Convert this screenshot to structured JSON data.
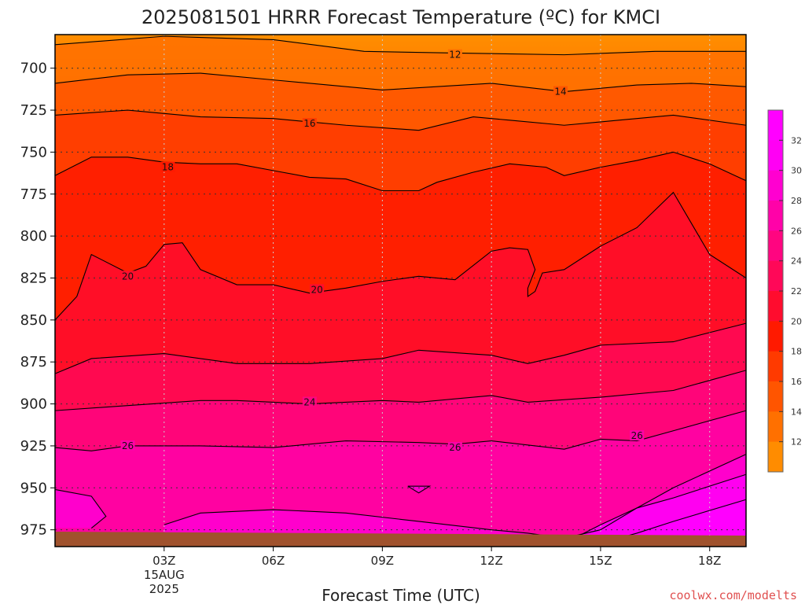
{
  "chart_data": {
    "type": "heatmap",
    "title": "2025081501 HRRR Forecast Temperature (ºC) for KMCI",
    "xlabel": "Forecast Time (UTC)",
    "ylabel": "",
    "x_ticks": [
      {
        "hour": 3,
        "label": "03Z",
        "extra": [
          "15AUG",
          "2025"
        ]
      },
      {
        "hour": 6,
        "label": "06Z"
      },
      {
        "hour": 9,
        "label": "09Z"
      },
      {
        "hour": 12,
        "label": "12Z"
      },
      {
        "hour": 15,
        "label": "15Z"
      },
      {
        "hour": 18,
        "label": "18Z"
      }
    ],
    "xlim": [
      0,
      19
    ],
    "ylim_hPa": [
      680,
      985
    ],
    "y_ticks": [
      700,
      725,
      750,
      775,
      800,
      825,
      850,
      875,
      900,
      925,
      950,
      975
    ],
    "colorbar": {
      "ticks": [
        12,
        14,
        16,
        18,
        20,
        22,
        24,
        26,
        28,
        30,
        32
      ],
      "colors": [
        "#ff8c00",
        "#ff7000",
        "#ff5500",
        "#ff3a00",
        "#ff1a00",
        "#ff0c2e",
        "#ff0858",
        "#ff0580",
        "#ff02a8",
        "#ff00d0",
        "#ff00f4",
        "#ff00ff"
      ]
    },
    "contours": [
      {
        "level": 12,
        "label_at": [
          11,
          692
        ],
        "points": [
          [
            0,
            686
          ],
          [
            3,
            681
          ],
          [
            6,
            683
          ],
          [
            8.5,
            690
          ],
          [
            11,
            691
          ],
          [
            14,
            692
          ],
          [
            16.5,
            690
          ],
          [
            19,
            690
          ]
        ]
      },
      {
        "level": 14,
        "label_at": [
          13.9,
          714
        ],
        "points": [
          [
            0,
            709
          ],
          [
            2,
            704
          ],
          [
            4,
            703
          ],
          [
            6,
            707
          ],
          [
            9,
            713
          ],
          [
            12,
            709
          ],
          [
            14,
            714
          ],
          [
            16,
            710
          ],
          [
            17.5,
            709
          ],
          [
            19,
            711
          ]
        ]
      },
      {
        "level": 16,
        "label_at": [
          7,
          733
        ],
        "points": [
          [
            0,
            728
          ],
          [
            2,
            725
          ],
          [
            4,
            729
          ],
          [
            6,
            730
          ],
          [
            8,
            734
          ],
          [
            10,
            737
          ],
          [
            11.5,
            729
          ],
          [
            12.5,
            731
          ],
          [
            14,
            734
          ],
          [
            15.5,
            731
          ],
          [
            17,
            728
          ],
          [
            19,
            734
          ]
        ]
      },
      {
        "level": 18,
        "label_at": [
          3.1,
          759
        ],
        "points": [
          [
            0,
            764
          ],
          [
            1,
            753
          ],
          [
            2,
            753
          ],
          [
            3,
            756
          ],
          [
            4,
            757
          ],
          [
            5,
            757
          ],
          [
            6,
            761
          ],
          [
            7,
            765
          ],
          [
            8,
            766
          ],
          [
            9,
            773
          ],
          [
            10,
            773
          ],
          [
            10.5,
            768
          ],
          [
            11.5,
            762
          ],
          [
            12.5,
            757
          ],
          [
            13.5,
            759
          ],
          [
            14,
            764
          ],
          [
            15,
            759
          ],
          [
            16,
            755
          ],
          [
            17,
            750
          ],
          [
            18,
            757
          ],
          [
            19,
            767
          ]
        ]
      },
      {
        "level": 20,
        "label_at": [
          2,
          824
        ],
        "points": [
          [
            0,
            850
          ],
          [
            0.6,
            836
          ],
          [
            1,
            811
          ],
          [
            2,
            822
          ],
          [
            2.5,
            818
          ],
          [
            3,
            805
          ],
          [
            3.5,
            804
          ],
          [
            4,
            820
          ],
          [
            5,
            829
          ],
          [
            6,
            829
          ],
          [
            7,
            834
          ],
          [
            8,
            831
          ],
          [
            9,
            827
          ],
          [
            10,
            824
          ],
          [
            11,
            826
          ],
          [
            12,
            809
          ],
          [
            12.5,
            807
          ],
          [
            13,
            808
          ],
          [
            13.2,
            820
          ],
          [
            13,
            831
          ],
          [
            13,
            836
          ],
          [
            13.2,
            833
          ],
          [
            13.4,
            822
          ],
          [
            14,
            820
          ],
          [
            15,
            806
          ],
          [
            16,
            795
          ],
          [
            17,
            774
          ],
          [
            18,
            811
          ],
          [
            19,
            825
          ]
        ]
      },
      {
        "level": 20,
        "label_at": [
          7.2,
          832
        ],
        "points": []
      },
      {
        "level": 22,
        "label_at": null,
        "points": [
          [
            0,
            882
          ],
          [
            1,
            873
          ],
          [
            3,
            870
          ],
          [
            5,
            876
          ],
          [
            7,
            876
          ],
          [
            9,
            873
          ],
          [
            10,
            868
          ],
          [
            12,
            871
          ],
          [
            13,
            876
          ],
          [
            14,
            871
          ],
          [
            15,
            865
          ],
          [
            17,
            863
          ],
          [
            19,
            852
          ]
        ]
      },
      {
        "level": 24,
        "label_at": [
          7,
          899
        ],
        "points": [
          [
            0,
            904
          ],
          [
            2,
            901
          ],
          [
            4,
            898
          ],
          [
            5,
            898
          ],
          [
            6,
            899
          ],
          [
            7,
            900
          ],
          [
            9,
            898
          ],
          [
            10,
            899
          ],
          [
            12,
            895
          ],
          [
            13,
            899
          ],
          [
            15,
            896
          ],
          [
            17,
            892
          ],
          [
            19,
            880
          ]
        ]
      },
      {
        "level": 26,
        "label_at": [
          2,
          925
        ],
        "points": [
          [
            0,
            926
          ],
          [
            1,
            928
          ],
          [
            2,
            925
          ],
          [
            4,
            925
          ],
          [
            6,
            926
          ],
          [
            8,
            922
          ],
          [
            10,
            923
          ],
          [
            11,
            924
          ],
          [
            12,
            922
          ],
          [
            14,
            927
          ],
          [
            15,
            921
          ],
          [
            16,
            922
          ],
          [
            17,
            916
          ],
          [
            19,
            904
          ]
        ]
      },
      {
        "level": 26,
        "label_at": [
          11,
          926
        ],
        "points": []
      },
      {
        "level": 26,
        "label_at": [
          16,
          919
        ],
        "points": []
      },
      {
        "level": 28,
        "label_at": null,
        "points": [
          [
            0,
            951
          ],
          [
            1,
            955
          ],
          [
            1.4,
            967
          ],
          [
            1,
            974
          ]
        ]
      },
      {
        "level": 28,
        "label_at": null,
        "points": [
          [
            3,
            972
          ],
          [
            4,
            965
          ],
          [
            6,
            963
          ],
          [
            8,
            965
          ],
          [
            10,
            970
          ],
          [
            12,
            975
          ],
          [
            13,
            977
          ],
          [
            14,
            980
          ],
          [
            15,
            975
          ],
          [
            16,
            962
          ],
          [
            17,
            950
          ],
          [
            19,
            930
          ]
        ]
      },
      {
        "level": 28,
        "label_at": null,
        "points": [
          [
            9.7,
            949
          ],
          [
            10,
            953
          ],
          [
            10.3,
            949
          ],
          [
            9.7,
            949
          ]
        ]
      },
      {
        "level": 30,
        "label_at": null,
        "points": [
          [
            14,
            983
          ],
          [
            15,
            972
          ],
          [
            16,
            962
          ],
          [
            17,
            956
          ],
          [
            19,
            942
          ]
        ]
      },
      {
        "level": 32,
        "label_at": null,
        "points": [
          [
            15,
            983
          ],
          [
            16,
            977
          ],
          [
            17,
            970
          ],
          [
            19,
            957
          ]
        ]
      }
    ]
  },
  "credit": "coolwx.com/modelts"
}
